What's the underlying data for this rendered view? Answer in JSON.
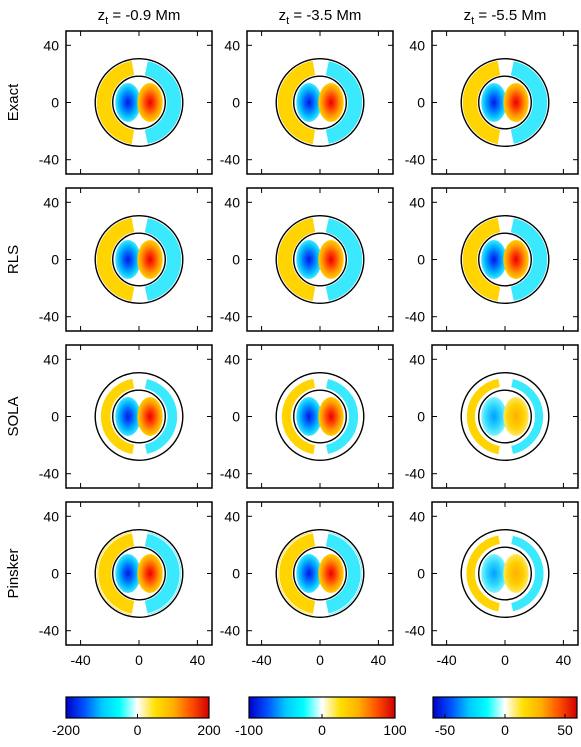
{
  "chart_data": {
    "type": "heatmap",
    "columns": [
      {
        "label_main": "z",
        "label_sub": "t",
        "label_rest": " = -0.9 Mm"
      },
      {
        "label_main": "z",
        "label_sub": "t",
        "label_rest": " = -3.5 Mm"
      },
      {
        "label_main": "z",
        "label_sub": "t",
        "label_rest": " = -5.5 Mm"
      }
    ],
    "rows": [
      {
        "label": "Exact"
      },
      {
        "label": "RLS"
      },
      {
        "label": "SOLA"
      },
      {
        "label": "Pinsker"
      }
    ],
    "x_ticks": [
      "-40",
      "0",
      "40"
    ],
    "y_ticks": [
      "40",
      "0",
      "-40"
    ],
    "xlim": [
      -50,
      50
    ],
    "ylim": [
      -50,
      50
    ],
    "inner_circle_radius": 18,
    "outer_circle_radius": 30,
    "colorbars": [
      {
        "min": -200,
        "max": 200,
        "ticks": [
          "-200",
          "0",
          "200"
        ]
      },
      {
        "min": -100,
        "max": 100,
        "ticks": [
          "-100",
          "0",
          "100"
        ]
      },
      {
        "min": -60,
        "max": 60,
        "ticks": [
          "-50",
          "0",
          "50"
        ]
      }
    ],
    "colormap": [
      "#0000c8",
      "#0050ff",
      "#00c8ff",
      "#00ffff",
      "#ffffff",
      "#ffe000",
      "#ffb000",
      "#ff5000",
      "#d00000"
    ],
    "panels": [
      [
        {
          "core": 1.0,
          "ring": 1.0,
          "ring_gap": 0.0
        },
        {
          "core": 1.0,
          "ring": 1.0,
          "ring_gap": 0.0
        },
        {
          "core": 1.0,
          "ring": 1.0,
          "ring_gap": 0.0
        }
      ],
      [
        {
          "core": 1.0,
          "ring": 1.0,
          "ring_gap": 0.0
        },
        {
          "core": 0.95,
          "ring": 1.0,
          "ring_gap": 0.0
        },
        {
          "core": 0.9,
          "ring": 1.0,
          "ring_gap": 0.0
        }
      ],
      [
        {
          "core": 1.0,
          "ring": 0.9,
          "ring_gap": 0.35
        },
        {
          "core": 0.8,
          "ring": 0.85,
          "ring_gap": 0.35
        },
        {
          "core": 0.55,
          "ring": 0.7,
          "ring_gap": 0.35
        }
      ],
      [
        {
          "core": 1.0,
          "ring": 1.0,
          "ring_gap": 0.05
        },
        {
          "core": 0.9,
          "ring": 1.0,
          "ring_gap": 0.05
        },
        {
          "core": 0.5,
          "ring": 0.7,
          "ring_gap": 0.3
        }
      ]
    ]
  }
}
